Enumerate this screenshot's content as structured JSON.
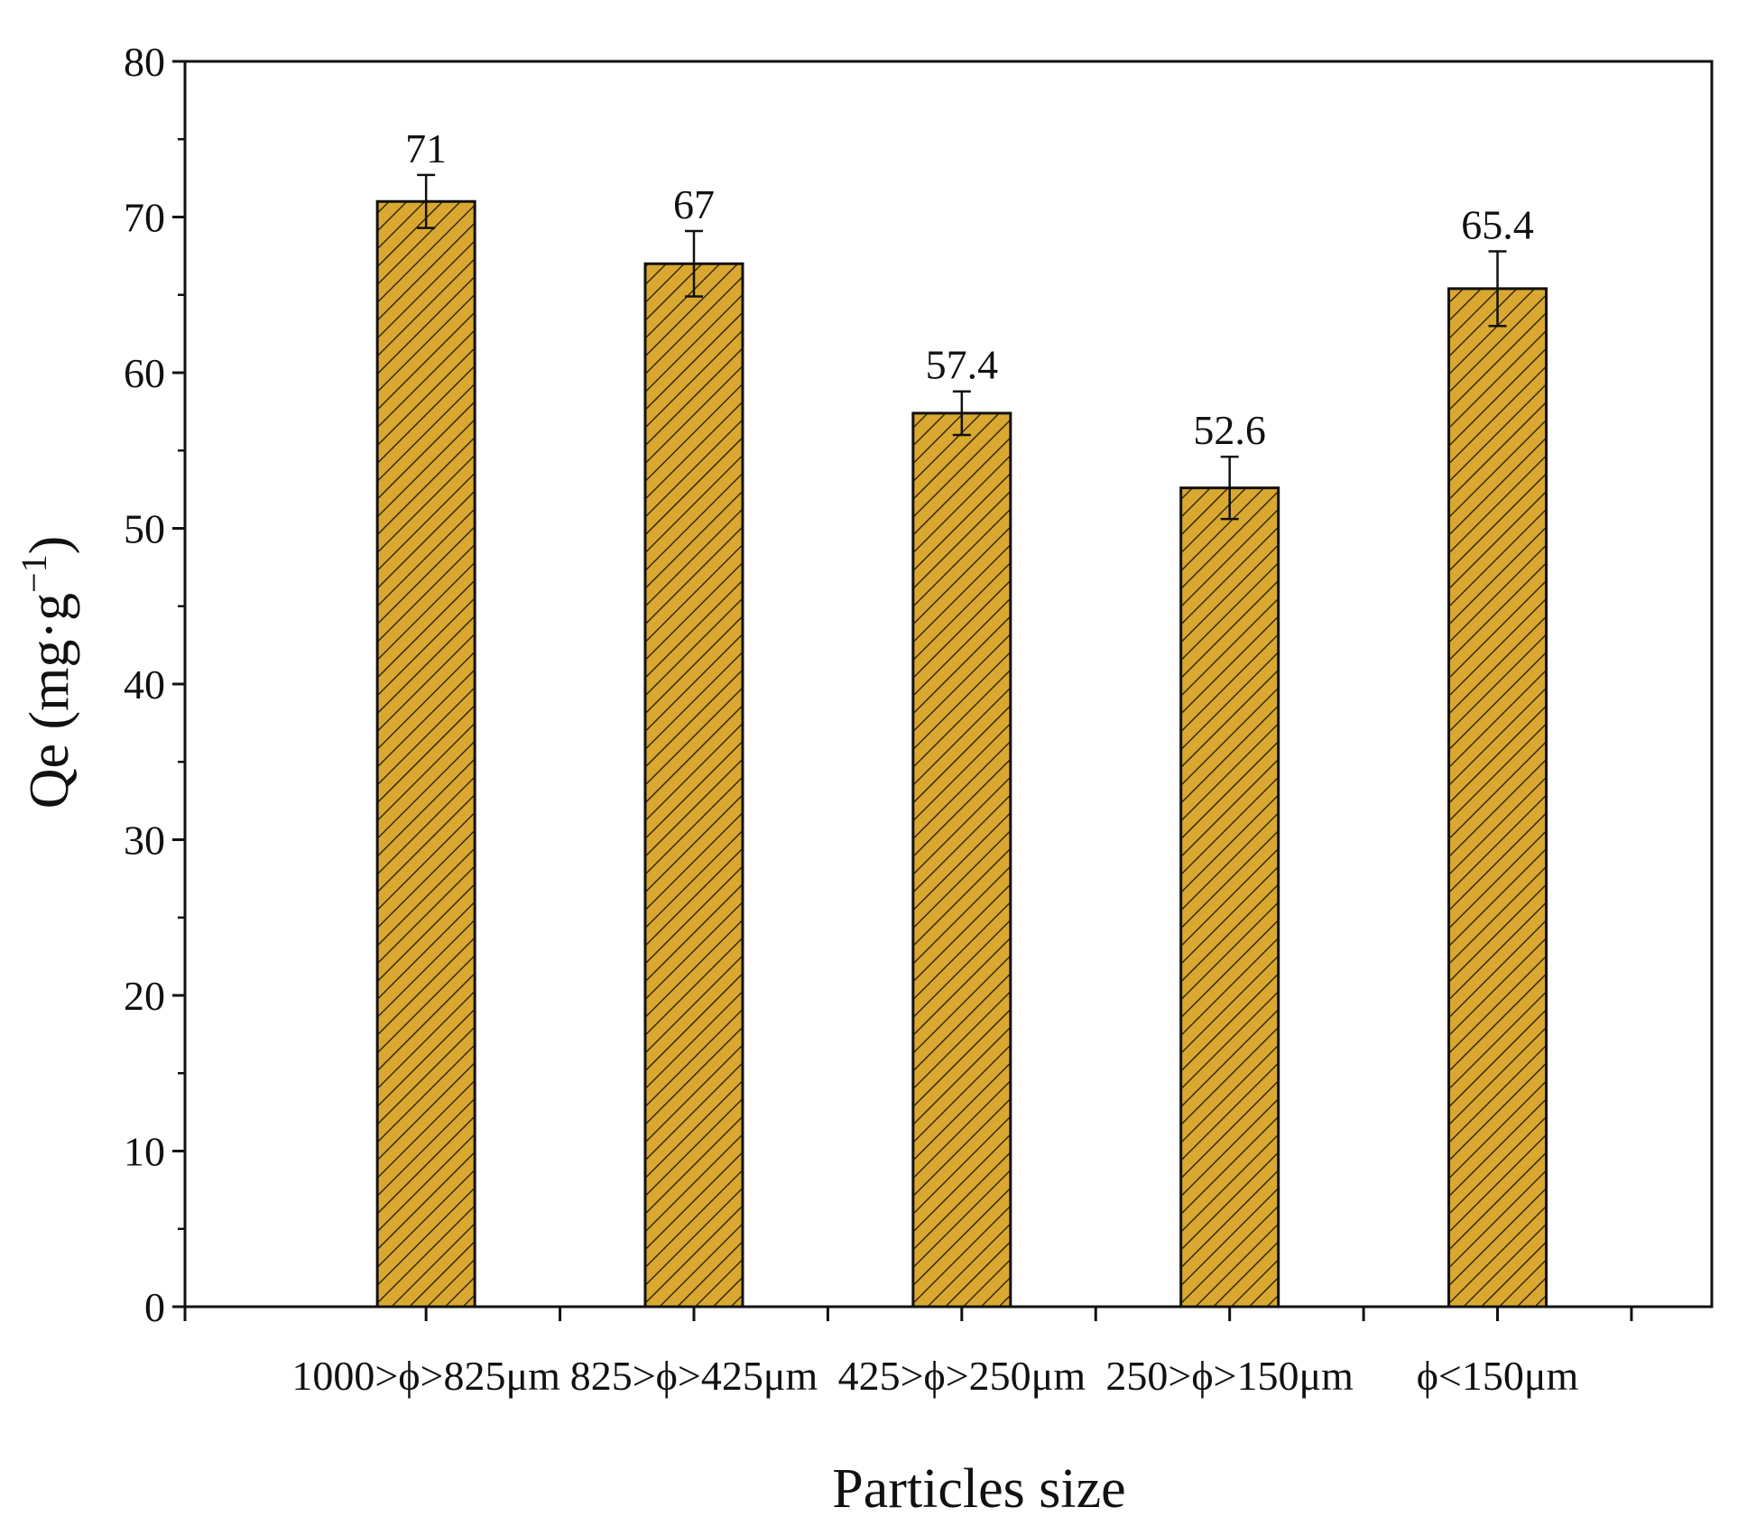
{
  "chart_data": {
    "type": "bar",
    "title": "",
    "categories": [
      "1000>ϕ>825μm",
      "825>ϕ>425μm",
      "425>ϕ>250μm",
      "250>ϕ>150μm",
      "ϕ<150μm"
    ],
    "values": [
      71,
      67,
      57.4,
      52.6,
      65.4
    ],
    "value_labels": [
      "71",
      "67",
      "57.4",
      "52.6",
      "65.4"
    ],
    "error_bars": [
      1.7,
      2.1,
      1.4,
      2.0,
      2.4
    ],
    "xlabel": "Particles size",
    "ylabel": {
      "main": "Qe (mg·g",
      "superscript": "−1",
      "close": ")"
    },
    "ylim": [
      0,
      80
    ],
    "yticks": [
      "0",
      "10",
      "20",
      "30",
      "40",
      "50",
      "60",
      "70",
      "80"
    ],
    "grid": false,
    "legend": "none",
    "bar_fill": "#d9a830",
    "bar_hatch_color": "#3a2a05",
    "bar_edge": "#111111"
  }
}
